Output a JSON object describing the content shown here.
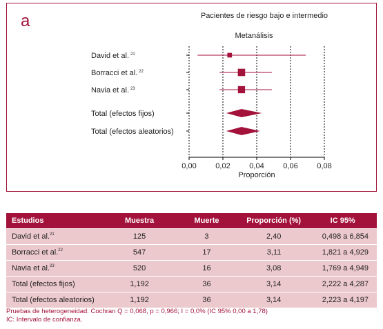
{
  "panel_label": "a",
  "chart_data": {
    "type": "forest",
    "title": "Pacientes de riesgo bajo e intermedio",
    "subtitle": "Metanálisis",
    "xlabel": "Proporción",
    "xlim": [
      0.0,
      0.08
    ],
    "xticks": [
      0.0,
      0.02,
      0.04,
      0.06,
      0.08
    ],
    "xtick_labels": [
      "0,00",
      "0,02",
      "0,04",
      "0,06",
      "0,08"
    ],
    "reference_lines": [
      0.02,
      0.04,
      0.06,
      0.08
    ],
    "studies": [
      {
        "label": "David et al.",
        "ref": "21",
        "estimate": 0.024,
        "ci": [
          0.005,
          0.069
        ],
        "weight": 0.3
      },
      {
        "label": "Borracci et al.",
        "ref": "22",
        "estimate": 0.031,
        "ci": [
          0.018,
          0.049
        ],
        "weight": 1.0
      },
      {
        "label": "Navia et al.",
        "ref": "23",
        "estimate": 0.031,
        "ci": [
          0.018,
          0.049
        ],
        "weight": 0.95
      }
    ],
    "summaries": [
      {
        "label": "Total (efectos fijos)",
        "estimate": 0.031,
        "ci": [
          0.022,
          0.043
        ]
      },
      {
        "label": "Total (efectos aleatorios)",
        "estimate": 0.031,
        "ci": [
          0.022,
          0.042
        ]
      }
    ],
    "colors": {
      "accent": "#a3123a",
      "axis": "#000000"
    }
  },
  "table": {
    "headers": [
      "Estudios",
      "Muestra",
      "Muerte",
      "Proporción (%)",
      "IC 95%"
    ],
    "rows": [
      {
        "name": "David et al.",
        "ref": "21",
        "sample": "125",
        "deaths": "3",
        "proportion": "2,40",
        "ci": "0,498 a 6,854"
      },
      {
        "name": "Borracci et al.",
        "ref": "22",
        "sample": "547",
        "deaths": "17",
        "proportion": "3,11",
        "ci": "1,821 a 4,929"
      },
      {
        "name": "Navia et al.",
        "ref": "23",
        "sample": "520",
        "deaths": "16",
        "proportion": "3,08",
        "ci": "1,769 a 4,949"
      },
      {
        "name": "Total (efectos fijos)",
        "ref": "",
        "sample": "1,192",
        "deaths": "36",
        "proportion": "3,14",
        "ci": "2,222 a 4,287"
      },
      {
        "name": "Total (efectos aleatorios)",
        "ref": "",
        "sample": "1,192",
        "deaths": "36",
        "proportion": "3,14",
        "ci": "2,223 a 4,197"
      }
    ]
  },
  "footnotes": {
    "line1": "Pruebas de heterogeneidad: Cochran Q = 0,068, p = 0,966; I = 0,0% (IC 95% 0,00 a 1,78)",
    "line2": "IC: Intervalo de confianza."
  }
}
